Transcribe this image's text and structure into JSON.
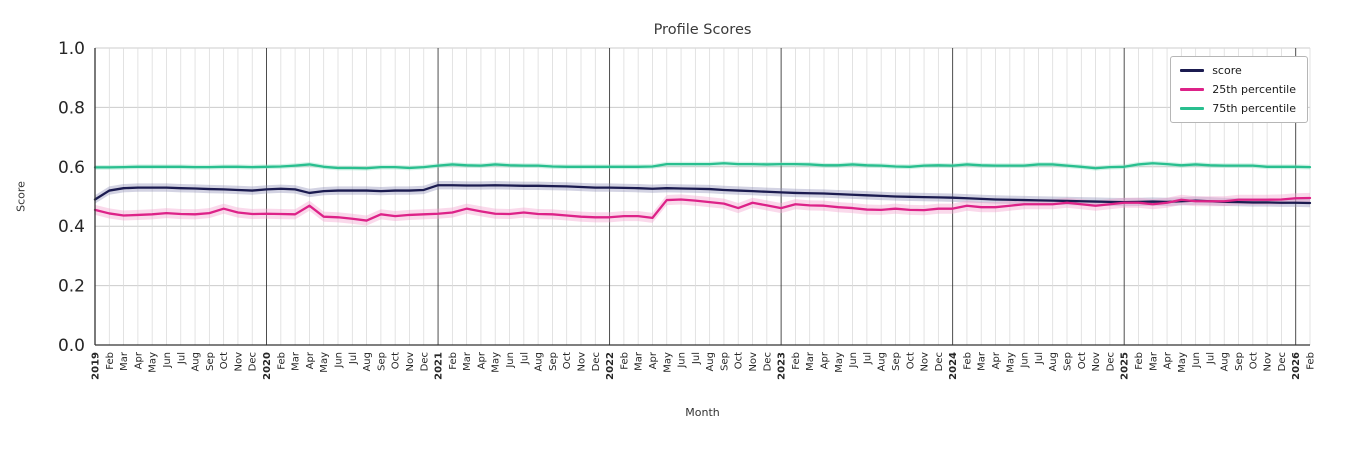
{
  "chart_data": {
    "type": "line",
    "title": "Profile Scores",
    "xlabel": "Month",
    "ylabel": "Score",
    "ylim": [
      0.0,
      1.0
    ],
    "y_ticks": [
      "0.0",
      "0.2",
      "0.4",
      "0.6",
      "0.8",
      "1.0"
    ],
    "grid": true,
    "legend_position": "upper right",
    "x_tick_labels": [
      "2019",
      "Feb",
      "Mar",
      "Apr",
      "May",
      "Jun",
      "Jul",
      "Aug",
      "Sep",
      "Oct",
      "Nov",
      "Dec",
      "2020",
      "Feb",
      "Mar",
      "Apr",
      "May",
      "Jun",
      "Jul",
      "Aug",
      "Sep",
      "Oct",
      "Nov",
      "Dec",
      "2021",
      "Feb",
      "Mar",
      "Apr",
      "May",
      "Jun",
      "Jul",
      "Aug",
      "Sep",
      "Oct",
      "Nov",
      "Dec",
      "2022",
      "Feb",
      "Mar",
      "Apr",
      "May",
      "Jun",
      "Jul",
      "Aug",
      "Sep",
      "Oct",
      "Nov",
      "Dec",
      "2023",
      "Feb",
      "Mar",
      "Apr",
      "May",
      "Jun",
      "Jul",
      "Aug",
      "Sep",
      "Oct",
      "Nov",
      "Dec",
      "2024",
      "Feb",
      "Mar",
      "Apr",
      "May",
      "Jun",
      "Jul",
      "Aug",
      "Sep",
      "Oct",
      "Nov",
      "Dec",
      "2025",
      "Feb",
      "Mar",
      "Apr",
      "May",
      "Jun",
      "Jul",
      "Aug",
      "Sep",
      "Oct",
      "Nov",
      "Dec",
      "2026",
      "Feb"
    ],
    "series": [
      {
        "name": "score",
        "color": "#1b1b50",
        "band_color": "#9090b8",
        "band_halfwidth": 0.014,
        "values": [
          0.49,
          0.52,
          0.528,
          0.53,
          0.53,
          0.53,
          0.528,
          0.527,
          0.525,
          0.524,
          0.522,
          0.52,
          0.524,
          0.526,
          0.524,
          0.512,
          0.518,
          0.52,
          0.52,
          0.52,
          0.518,
          0.52,
          0.52,
          0.522,
          0.538,
          0.538,
          0.537,
          0.537,
          0.538,
          0.537,
          0.536,
          0.536,
          0.535,
          0.534,
          0.532,
          0.53,
          0.53,
          0.529,
          0.528,
          0.526,
          0.528,
          0.527,
          0.526,
          0.525,
          0.522,
          0.52,
          0.518,
          0.516,
          0.514,
          0.512,
          0.511,
          0.51,
          0.508,
          0.506,
          0.504,
          0.502,
          0.5,
          0.499,
          0.498,
          0.497,
          0.496,
          0.494,
          0.492,
          0.49,
          0.489,
          0.488,
          0.487,
          0.486,
          0.485,
          0.484,
          0.483,
          0.482,
          0.481,
          0.482,
          0.483,
          0.482,
          0.484,
          0.486,
          0.484,
          0.482,
          0.481,
          0.48,
          0.48,
          0.479,
          0.479,
          0.478
        ]
      },
      {
        "name": "25th percentile",
        "color": "#dd2288",
        "band_color": "#f2a0cc",
        "band_halfwidth": 0.017,
        "values": [
          0.455,
          0.443,
          0.436,
          0.438,
          0.44,
          0.444,
          0.441,
          0.44,
          0.444,
          0.459,
          0.446,
          0.441,
          0.442,
          0.441,
          0.44,
          0.469,
          0.432,
          0.43,
          0.425,
          0.419,
          0.44,
          0.434,
          0.438,
          0.44,
          0.442,
          0.446,
          0.459,
          0.45,
          0.442,
          0.441,
          0.446,
          0.441,
          0.44,
          0.436,
          0.432,
          0.43,
          0.43,
          0.434,
          0.434,
          0.428,
          0.488,
          0.49,
          0.486,
          0.481,
          0.476,
          0.461,
          0.479,
          0.47,
          0.461,
          0.474,
          0.47,
          0.469,
          0.464,
          0.461,
          0.456,
          0.455,
          0.459,
          0.455,
          0.454,
          0.459,
          0.459,
          0.469,
          0.464,
          0.464,
          0.469,
          0.474,
          0.474,
          0.474,
          0.479,
          0.474,
          0.469,
          0.474,
          0.479,
          0.479,
          0.474,
          0.479,
          0.489,
          0.484,
          0.484,
          0.484,
          0.489,
          0.489,
          0.489,
          0.49,
          0.494,
          0.495
        ]
      },
      {
        "name": "75th percentile",
        "color": "#29bf8f",
        "band_color": "#8fe0c2",
        "band_halfwidth": 0.008,
        "values": [
          0.598,
          0.598,
          0.599,
          0.6,
          0.6,
          0.6,
          0.6,
          0.599,
          0.599,
          0.6,
          0.6,
          0.599,
          0.6,
          0.601,
          0.604,
          0.608,
          0.6,
          0.596,
          0.596,
          0.595,
          0.599,
          0.599,
          0.596,
          0.599,
          0.604,
          0.608,
          0.605,
          0.604,
          0.608,
          0.605,
          0.604,
          0.604,
          0.601,
          0.6,
          0.6,
          0.6,
          0.6,
          0.6,
          0.6,
          0.601,
          0.609,
          0.609,
          0.609,
          0.609,
          0.612,
          0.609,
          0.609,
          0.608,
          0.609,
          0.609,
          0.608,
          0.605,
          0.605,
          0.608,
          0.605,
          0.604,
          0.601,
          0.6,
          0.604,
          0.605,
          0.604,
          0.608,
          0.605,
          0.604,
          0.604,
          0.604,
          0.608,
          0.608,
          0.604,
          0.6,
          0.595,
          0.599,
          0.6,
          0.608,
          0.612,
          0.609,
          0.605,
          0.608,
          0.605,
          0.604,
          0.604,
          0.604,
          0.6,
          0.6,
          0.6,
          0.599
        ]
      }
    ]
  }
}
